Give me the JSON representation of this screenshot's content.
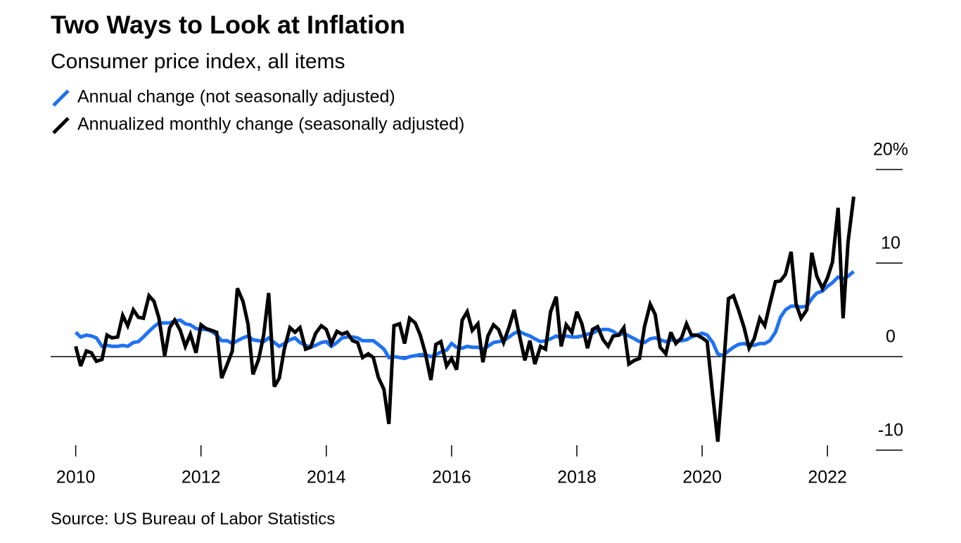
{
  "chart_data": {
    "type": "line",
    "title": "Two Ways to Look at Inflation",
    "subtitle": "Consumer price index, all items",
    "source": "Source: US Bureau of Labor Statistics",
    "x": [
      2010,
      2010.08,
      2010.17,
      2010.25,
      2010.33,
      2010.42,
      2010.5,
      2010.58,
      2010.67,
      2010.75,
      2010.83,
      2010.92,
      2011,
      2011.08,
      2011.17,
      2011.25,
      2011.33,
      2011.42,
      2011.5,
      2011.58,
      2011.67,
      2011.75,
      2011.83,
      2011.92,
      2012,
      2012.08,
      2012.17,
      2012.25,
      2012.33,
      2012.42,
      2012.5,
      2012.58,
      2012.67,
      2012.75,
      2012.83,
      2012.92,
      2013,
      2013.08,
      2013.17,
      2013.25,
      2013.33,
      2013.42,
      2013.5,
      2013.58,
      2013.67,
      2013.75,
      2013.83,
      2013.92,
      2014,
      2014.08,
      2014.17,
      2014.25,
      2014.33,
      2014.42,
      2014.5,
      2014.58,
      2014.67,
      2014.75,
      2014.83,
      2014.92,
      2015,
      2015.08,
      2015.17,
      2015.25,
      2015.33,
      2015.42,
      2015.5,
      2015.58,
      2015.67,
      2015.75,
      2015.83,
      2015.92,
      2016,
      2016.08,
      2016.17,
      2016.25,
      2016.33,
      2016.42,
      2016.5,
      2016.58,
      2016.67,
      2016.75,
      2016.83,
      2016.92,
      2017,
      2017.08,
      2017.17,
      2017.25,
      2017.33,
      2017.42,
      2017.5,
      2017.58,
      2017.67,
      2017.75,
      2017.83,
      2017.92,
      2018,
      2018.08,
      2018.17,
      2018.25,
      2018.33,
      2018.42,
      2018.5,
      2018.58,
      2018.67,
      2018.75,
      2018.83,
      2018.92,
      2019,
      2019.08,
      2019.17,
      2019.25,
      2019.33,
      2019.42,
      2019.5,
      2019.58,
      2019.67,
      2019.75,
      2019.83,
      2019.92,
      2020,
      2020.08,
      2020.17,
      2020.25,
      2020.33,
      2020.42,
      2020.5,
      2020.58,
      2020.67,
      2020.75,
      2020.83,
      2020.92,
      2021,
      2021.08,
      2021.17,
      2021.25,
      2021.33,
      2021.42,
      2021.5,
      2021.58,
      2021.67,
      2021.75,
      2021.83,
      2021.92,
      2022,
      2022.08,
      2022.17,
      2022.25,
      2022.33,
      2022.42
    ],
    "series": [
      {
        "name": "Annual change (not seasonally adjusted)",
        "color": "#1f72f2",
        "values": [
          2.6,
          2.1,
          2.3,
          2.2,
          2.0,
          1.1,
          1.2,
          1.1,
          1.1,
          1.2,
          1.1,
          1.5,
          1.6,
          2.1,
          2.7,
          3.2,
          3.6,
          3.6,
          3.6,
          3.8,
          3.9,
          3.5,
          3.4,
          3.0,
          2.9,
          2.9,
          2.7,
          2.3,
          1.7,
          1.7,
          1.4,
          1.7,
          2.0,
          2.2,
          1.8,
          1.7,
          1.6,
          2.0,
          1.5,
          1.1,
          1.4,
          1.8,
          2.0,
          1.5,
          1.2,
          1.0,
          1.2,
          1.5,
          1.6,
          1.1,
          1.5,
          2.0,
          2.1,
          2.1,
          2.0,
          1.7,
          1.7,
          1.7,
          1.3,
          0.8,
          -0.1,
          0.0,
          -0.1,
          -0.2,
          0.0,
          0.1,
          0.2,
          0.2,
          0.0,
          0.2,
          0.5,
          0.7,
          1.4,
          1.0,
          0.9,
          1.1,
          1.0,
          1.0,
          0.8,
          1.1,
          1.5,
          1.6,
          1.7,
          2.1,
          2.5,
          2.7,
          2.4,
          2.2,
          1.9,
          1.6,
          1.7,
          1.9,
          2.2,
          2.0,
          2.2,
          2.1,
          2.1,
          2.2,
          2.4,
          2.5,
          2.8,
          2.9,
          2.9,
          2.7,
          2.3,
          2.5,
          2.2,
          1.9,
          1.6,
          1.5,
          1.9,
          2.0,
          1.8,
          1.6,
          1.8,
          1.7,
          1.7,
          1.8,
          2.1,
          2.3,
          2.5,
          2.3,
          1.5,
          0.3,
          0.1,
          0.6,
          1.0,
          1.3,
          1.4,
          1.2,
          1.2,
          1.4,
          1.4,
          1.7,
          2.6,
          4.2,
          5.0,
          5.4,
          5.4,
          5.3,
          5.4,
          6.2,
          6.8,
          7.0,
          7.5,
          7.9,
          8.5,
          8.3,
          8.6,
          9.1
        ]
      },
      {
        "name": "Annualized monthly change (seasonally adjusted)",
        "color": "#000000",
        "values": [
          1.1,
          -1.0,
          0.6,
          0.4,
          -0.5,
          -0.3,
          2.3,
          2.0,
          2.1,
          4.4,
          3.3,
          5.0,
          4.2,
          4.1,
          6.5,
          5.9,
          4.1,
          0.1,
          3.1,
          3.9,
          2.8,
          1.1,
          2.4,
          0.4,
          3.4,
          3.0,
          2.8,
          2.6,
          -2.3,
          -0.8,
          0.6,
          7.3,
          5.9,
          3.5,
          -1.9,
          -0.3,
          2.3,
          6.8,
          -3.2,
          -2.3,
          0.8,
          3.1,
          2.6,
          3.1,
          0.8,
          1.0,
          2.5,
          3.3,
          2.9,
          1.4,
          2.7,
          2.4,
          2.6,
          1.7,
          1.5,
          -0.1,
          0.3,
          -0.1,
          -2.2,
          -3.5,
          -7.2,
          3.3,
          3.5,
          1.4,
          4.1,
          3.6,
          2.3,
          0.4,
          -2.5,
          1.3,
          1.6,
          -1.0,
          -0.2,
          -1.4,
          3.9,
          4.8,
          2.8,
          3.5,
          -0.6,
          2.2,
          3.4,
          2.9,
          1.5,
          3.2,
          5.0,
          2.4,
          -0.4,
          1.7,
          -0.8,
          1.1,
          0.8,
          4.8,
          6.4,
          1.1,
          3.4,
          2.6,
          4.8,
          3.5,
          0.9,
          2.9,
          3.2,
          1.8,
          1.1,
          2.2,
          2.3,
          3.1,
          -0.8,
          -0.4,
          -0.2,
          3.2,
          5.6,
          4.5,
          1.0,
          0.3,
          2.6,
          1.4,
          2.0,
          3.5,
          2.3,
          2.3,
          2.0,
          1.6,
          -4.2,
          -9.1,
          -2.3,
          6.2,
          6.5,
          5.0,
          3.1,
          0.9,
          1.9,
          4.1,
          3.3,
          5.6,
          8.0,
          8.1,
          8.8,
          11.2,
          5.6,
          4.1,
          5.0,
          11.1,
          8.6,
          7.3,
          8.4,
          10.1,
          15.9,
          4.1,
          12.3,
          17.1
        ]
      }
    ],
    "xlim": [
      2009.6,
      2023.2
    ],
    "xticks": [
      2010,
      2012,
      2014,
      2016,
      2018,
      2020,
      2022
    ],
    "ylim": [
      -10,
      20
    ],
    "yticks": [
      -10,
      0,
      10,
      {
        "value": 20,
        "label": "20%"
      }
    ]
  }
}
